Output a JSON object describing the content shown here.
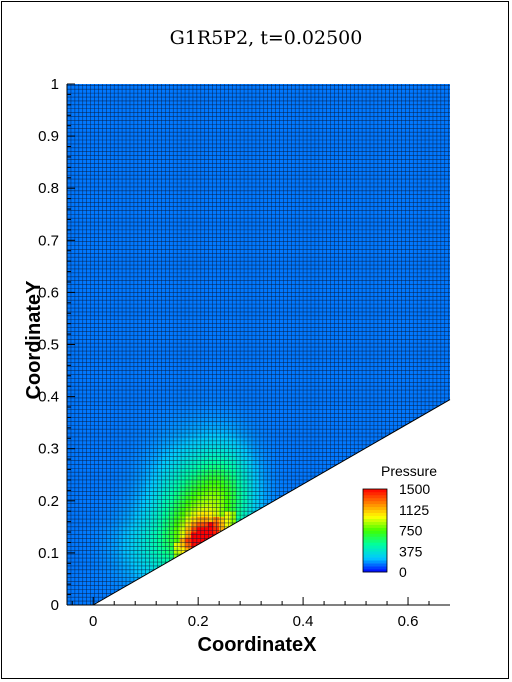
{
  "chart_data": {
    "type": "heatmap",
    "title": "G1R5P2, t=0.02500",
    "xlabel": "CoordinateX",
    "ylabel": "CoordinateY",
    "xlim": [
      -0.05,
      0.68
    ],
    "ylim": [
      0,
      1
    ],
    "x_ticks": [
      "0",
      "0.2",
      "0.4",
      "0.6"
    ],
    "x_tick_values": [
      0,
      0.2,
      0.4,
      0.6
    ],
    "y_ticks": [
      "0",
      "0.1",
      "0.2",
      "0.3",
      "0.4",
      "0.5",
      "0.6",
      "0.7",
      "0.8",
      "0.9",
      "1"
    ],
    "y_tick_values": [
      0,
      0.1,
      0.2,
      0.3,
      0.4,
      0.5,
      0.6,
      0.7,
      0.8,
      0.9,
      1
    ],
    "wall": {
      "x0": 0,
      "x1": 0.68,
      "slope": 0.58
    },
    "mesh": {
      "nx": 68,
      "ny": 100,
      "refine_boundary_x": 0.25
    },
    "colormap": [
      "#0000ff",
      "#00c8ff",
      "#00ffa0",
      "#40ff00",
      "#ffff00",
      "#ff8000",
      "#ff0000"
    ],
    "background_color": "#1e50ee",
    "legend": {
      "title": "Pressure",
      "ticks": [
        "1500",
        "1125",
        "750",
        "375",
        "0"
      ],
      "tick_values": [
        1500,
        1125,
        750,
        375,
        0
      ],
      "range": [
        0,
        1500
      ],
      "placement": "lower-right"
    }
  }
}
